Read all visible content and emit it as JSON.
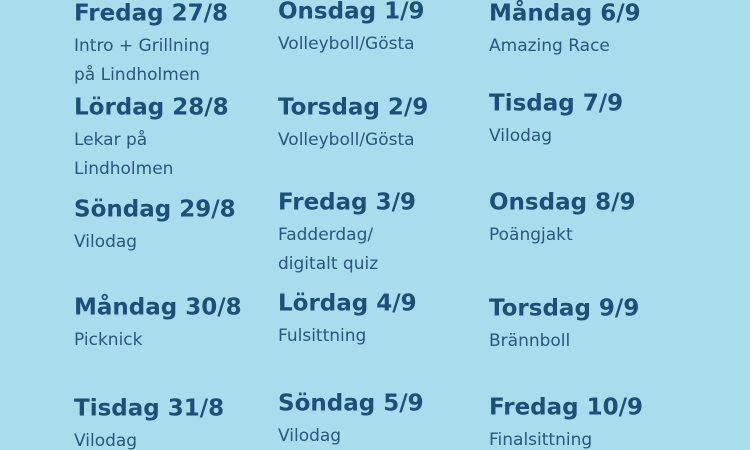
{
  "columns": [
    [
      {
        "day": "Fredag 27/8",
        "activity": [
          "Intro + Grillning",
          "på Lindholmen"
        ]
      },
      {
        "day": "Lördag 28/8",
        "activity": [
          "Lekar på",
          "Lindholmen"
        ]
      },
      {
        "day": "Söndag 29/8",
        "activity": [
          "Vilodag"
        ]
      },
      {
        "day": "Måndag 30/8",
        "activity": [
          "Picknick"
        ]
      },
      {
        "day": "Tisdag 31/8",
        "activity": [
          "Vilodag"
        ]
      }
    ],
    [
      {
        "day": "Onsdag 1/9",
        "activity": [
          "Volleyboll/Gösta"
        ]
      },
      {
        "day": "Torsdag 2/9",
        "activity": [
          "Volleyboll/Gösta"
        ]
      },
      {
        "day": "Fredag 3/9",
        "activity": [
          "Fadderdag/",
          "digitalt quiz"
        ]
      },
      {
        "day": "Lördag 4/9",
        "activity": [
          "Fulsittning"
        ]
      },
      {
        "day": "Söndag 5/9",
        "activity": [
          "Vilodag"
        ]
      }
    ],
    [
      {
        "day": "Måndag 6/9",
        "activity": [
          "Amazing Race"
        ]
      },
      {
        "day": "Tisdag 7/9",
        "activity": [
          "Vilodag"
        ]
      },
      {
        "day": "Onsdag 8/9",
        "activity": [
          "Poängjakt"
        ]
      },
      {
        "day": "Torsdag 9/9",
        "activity": [
          "Brännboll"
        ]
      },
      {
        "day": "Fredag 10/9",
        "activity": [
          "Finalsittning"
        ]
      }
    ]
  ]
}
